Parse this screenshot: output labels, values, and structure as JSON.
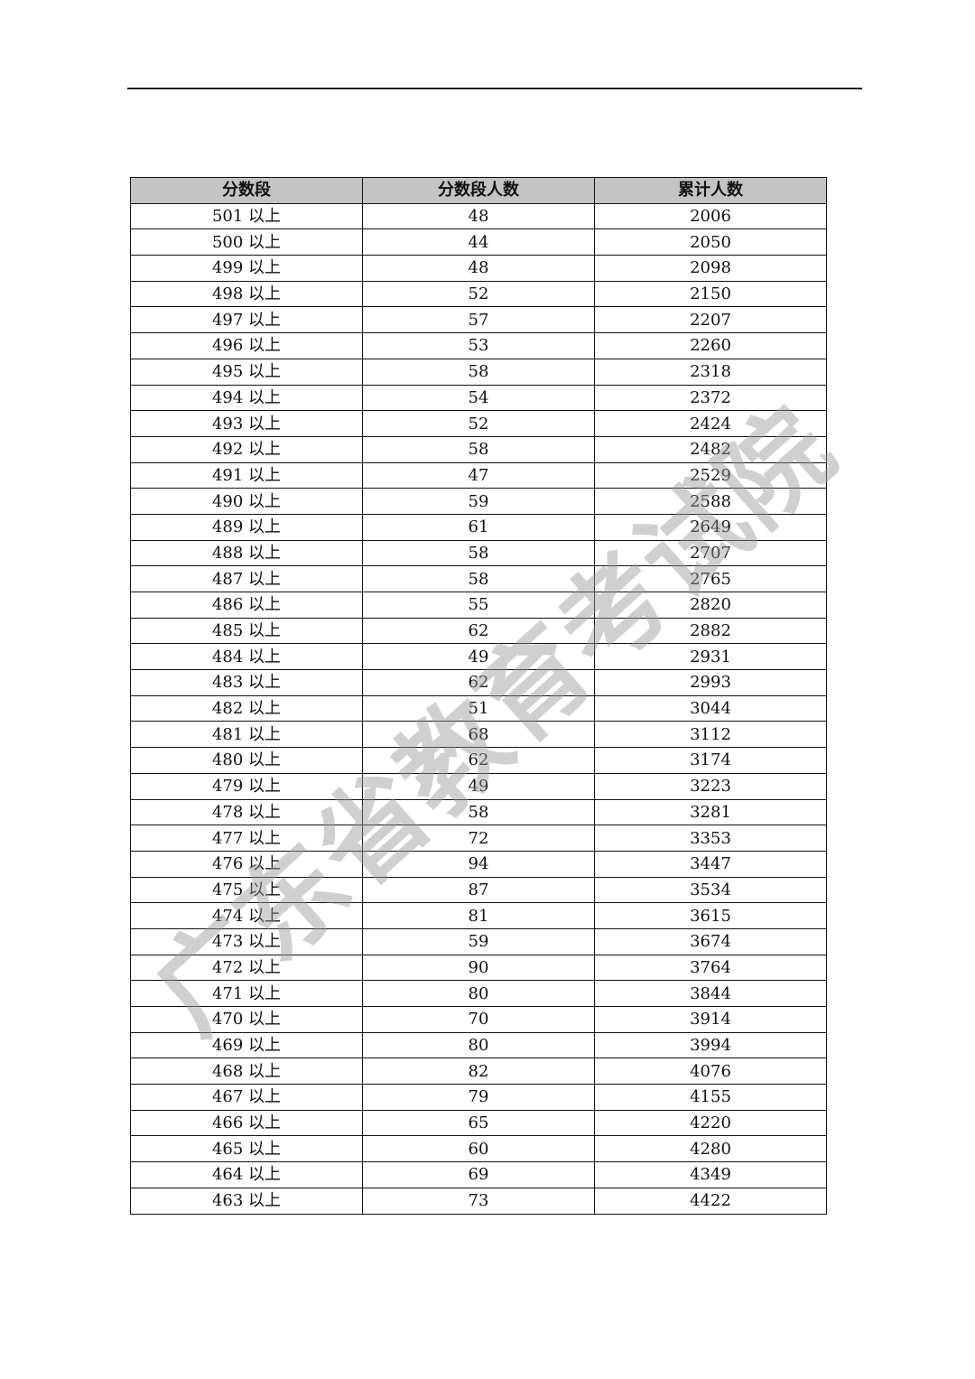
{
  "table": {
    "headers": [
      "分数段",
      "分数段人数",
      "累计人数"
    ],
    "rows": [
      [
        "501 以上",
        "48",
        "2006"
      ],
      [
        "500 以上",
        "44",
        "2050"
      ],
      [
        "499 以上",
        "48",
        "2098"
      ],
      [
        "498 以上",
        "52",
        "2150"
      ],
      [
        "497 以上",
        "57",
        "2207"
      ],
      [
        "496 以上",
        "53",
        "2260"
      ],
      [
        "495 以上",
        "58",
        "2318"
      ],
      [
        "494 以上",
        "54",
        "2372"
      ],
      [
        "493 以上",
        "52",
        "2424"
      ],
      [
        "492 以上",
        "58",
        "2482"
      ],
      [
        "491 以上",
        "47",
        "2529"
      ],
      [
        "490 以上",
        "59",
        "2588"
      ],
      [
        "489 以上",
        "61",
        "2649"
      ],
      [
        "488 以上",
        "58",
        "2707"
      ],
      [
        "487 以上",
        "58",
        "2765"
      ],
      [
        "486 以上",
        "55",
        "2820"
      ],
      [
        "485 以上",
        "62",
        "2882"
      ],
      [
        "484 以上",
        "49",
        "2931"
      ],
      [
        "483 以上",
        "62",
        "2993"
      ],
      [
        "482 以上",
        "51",
        "3044"
      ],
      [
        "481 以上",
        "68",
        "3112"
      ],
      [
        "480 以上",
        "62",
        "3174"
      ],
      [
        "479 以上",
        "49",
        "3223"
      ],
      [
        "478 以上",
        "58",
        "3281"
      ],
      [
        "477 以上",
        "72",
        "3353"
      ],
      [
        "476 以上",
        "94",
        "3447"
      ],
      [
        "475 以上",
        "87",
        "3534"
      ],
      [
        "474 以上",
        "81",
        "3615"
      ],
      [
        "473 以上",
        "59",
        "3674"
      ],
      [
        "472 以上",
        "90",
        "3764"
      ],
      [
        "471 以上",
        "80",
        "3844"
      ],
      [
        "470 以上",
        "70",
        "3914"
      ],
      [
        "469 以上",
        "80",
        "3994"
      ],
      [
        "468 以上",
        "82",
        "4076"
      ],
      [
        "467 以上",
        "79",
        "4155"
      ],
      [
        "466 以上",
        "65",
        "4220"
      ],
      [
        "465 以上",
        "60",
        "4280"
      ],
      [
        "464 以上",
        "69",
        "4349"
      ],
      [
        "463 以上",
        "73",
        "4422"
      ]
    ]
  },
  "watermark": "广东省教育考试院"
}
